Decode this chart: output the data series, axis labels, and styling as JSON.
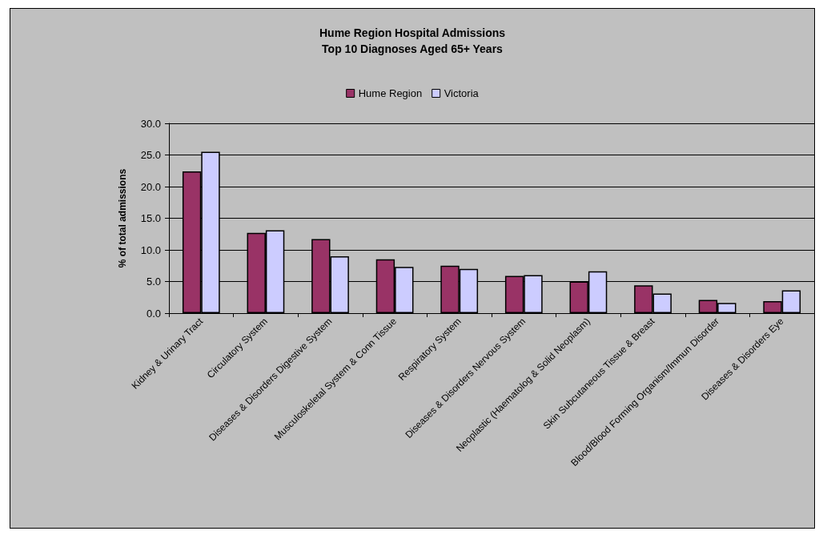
{
  "chart_data": {
    "type": "bar",
    "title": "Hume Region Hospital Admissions",
    "subtitle": "Top 10 Diagnoses Aged 65+ Years",
    "ylabel": "% of total admissions",
    "categories": [
      "Kidney & Urinary Tract",
      "Circulatory System",
      "Diseases & Disorders Digestive System",
      "Musculoskeletal System & Conn Tissue",
      "Respiratory System",
      "Diseases & Disorders Nervous System",
      "Neoplastic (Haematolog & Solid Neoplasm)",
      "Skin Subcutaneous Tissue & Breast",
      "Blood/Blood Forming Organism/Immun Disorder",
      "Diseases & Disorders Eye"
    ],
    "series": [
      {
        "name": "Hume Region",
        "color": "#993366",
        "values": [
          22.4,
          12.7,
          11.7,
          8.5,
          7.5,
          5.9,
          5.0,
          4.4,
          2.1,
          1.9
        ]
      },
      {
        "name": "Victoria",
        "color": "#ccccff",
        "values": [
          25.5,
          13.1,
          9.0,
          7.3,
          7.0,
          6.0,
          6.6,
          3.1,
          1.6,
          3.6
        ]
      }
    ],
    "ylim": [
      0,
      30
    ],
    "yticks": [
      {
        "value": 0,
        "label": "0.0"
      },
      {
        "value": 5,
        "label": "5.0"
      },
      {
        "value": 10,
        "label": "10.0"
      },
      {
        "value": 15,
        "label": "15.0"
      },
      {
        "value": 20,
        "label": "20.0"
      },
      {
        "value": 25,
        "label": "25.0"
      },
      {
        "value": 30,
        "label": "30.0"
      }
    ],
    "grid": "y",
    "legend": "top"
  }
}
